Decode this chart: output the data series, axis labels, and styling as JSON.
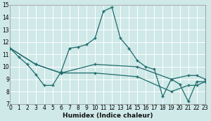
{
  "xlabel": "Humidex (Indice chaleur)",
  "bg_color": "#cfe8e8",
  "grid_color": "#b0d0d0",
  "line_color": "#1e6b6b",
  "xlim": [
    0,
    23
  ],
  "ylim": [
    7,
    15
  ],
  "xticks": [
    0,
    1,
    2,
    3,
    4,
    5,
    6,
    7,
    8,
    9,
    10,
    11,
    12,
    13,
    14,
    15,
    16,
    17,
    18,
    19,
    20,
    21,
    22,
    23
  ],
  "yticks": [
    7,
    8,
    9,
    10,
    11,
    12,
    13,
    14,
    15
  ],
  "series1_x": [
    0,
    1,
    2,
    3,
    4,
    5,
    6,
    7,
    8,
    9,
    10,
    11,
    12,
    13,
    14,
    15,
    16,
    17,
    18,
    19,
    20,
    21,
    22,
    23
  ],
  "series1_y": [
    11.5,
    10.8,
    10.2,
    9.4,
    8.5,
    8.5,
    9.6,
    11.5,
    11.6,
    11.8,
    12.3,
    14.5,
    14.8,
    12.3,
    11.5,
    10.5,
    10.0,
    9.8,
    7.6,
    9.0,
    8.6,
    7.2,
    8.8,
    8.8
  ],
  "series2_x": [
    0,
    3,
    6,
    10,
    15,
    19,
    21,
    22,
    23
  ],
  "series2_y": [
    11.5,
    10.2,
    9.5,
    10.2,
    10.0,
    9.0,
    9.3,
    9.3,
    9.0
  ],
  "series3_x": [
    0,
    3,
    6,
    10,
    15,
    19,
    21,
    22,
    23
  ],
  "series3_y": [
    11.5,
    10.2,
    9.5,
    9.5,
    9.2,
    8.0,
    8.5,
    8.5,
    8.8
  ]
}
